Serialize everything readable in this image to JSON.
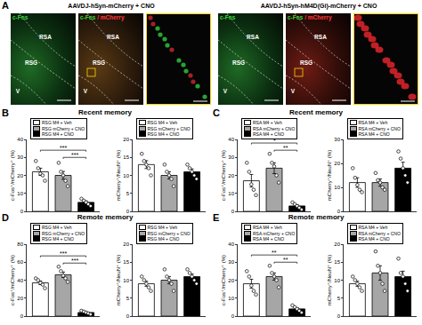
{
  "panel_a": {
    "label": "A",
    "groups": [
      {
        "title": "AAVDJ-hSyn-mCherry + CNO",
        "images": [
          {
            "channels": [
              "c-Fos"
            ],
            "regions": [
              "RSA",
              "RSG",
              "V"
            ]
          },
          {
            "channels": [
              "c-Fos",
              "/ mCherry"
            ],
            "regions": [
              "RSA",
              "RSG",
              "V"
            ]
          }
        ]
      },
      {
        "title": "AAVDJ-hSyn-hM4D(Gi)-mCherry + CNO",
        "images": [
          {
            "channels": [
              "c-Fos"
            ],
            "regions": [
              "RSA",
              "RSG",
              "V"
            ]
          },
          {
            "channels": [
              "c-Fos",
              "/ mCherry"
            ],
            "regions": [
              "RSA",
              "RSG",
              "V"
            ]
          }
        ]
      }
    ]
  },
  "chart_data": [
    {
      "type": "bar",
      "panel": "B",
      "title": "Recent memory",
      "ylabel": "c-Fos⁺/mCherry⁺ (%)",
      "categories": [
        "RSG M4 + Veh",
        "RSG mCherry + CNO",
        "RSG M4 + CNO"
      ],
      "colors": [
        "#ffffff",
        "#a6a6a6",
        "#000000"
      ],
      "values": [
        22,
        20,
        5
      ],
      "errors": [
        2,
        2.2,
        0.8
      ],
      "points": [
        [
          28,
          24,
          21,
          20,
          17
        ],
        [
          27,
          22,
          20,
          17,
          14
        ],
        [
          7,
          6,
          5,
          4,
          3
        ]
      ],
      "significance": [
        {
          "from": 1,
          "to": 2,
          "label": "***"
        },
        {
          "from": 0,
          "to": 2,
          "label": "***"
        }
      ],
      "ylim": [
        0,
        40
      ],
      "yticks": [
        0,
        10,
        20,
        30,
        40
      ],
      "grid": false,
      "tick_labels": "y"
    },
    {
      "type": "bar",
      "ylabel": "mCherry⁺/NeuN⁺ (%)",
      "categories": [
        "RSG M4 + Veh",
        "RSG mCherry + CNO",
        "RSG M4 + CNO"
      ],
      "colors": [
        "#ffffff",
        "#a6a6a6",
        "#000000"
      ],
      "values": [
        13,
        10,
        11
      ],
      "errors": [
        1.1,
        1,
        0.8
      ],
      "points": [
        [
          16,
          14,
          13,
          12,
          10
        ],
        [
          13,
          11,
          10,
          9,
          7
        ],
        [
          13,
          12,
          11,
          10,
          9
        ]
      ],
      "ylim": [
        0,
        20
      ],
      "yticks": [
        0,
        5,
        10,
        15,
        20
      ],
      "grid": false,
      "tick_labels": "y"
    },
    {
      "type": "bar",
      "panel": "C",
      "title": "Recent memory",
      "ylabel": "c-Fos⁺/mCherry⁺ (%)",
      "categories": [
        "RSA M4 + Veh",
        "RSA mCherry + CNO",
        "RSA M4 + CNO"
      ],
      "colors": [
        "#ffffff",
        "#a6a6a6",
        "#000000"
      ],
      "values": [
        17,
        24,
        3
      ],
      "errors": [
        3.5,
        3,
        0.7
      ],
      "points": [
        [
          27,
          22,
          15,
          12,
          9
        ],
        [
          32,
          27,
          25,
          20,
          16
        ],
        [
          5,
          4,
          3,
          2,
          1
        ]
      ],
      "significance": [
        {
          "from": 1,
          "to": 2,
          "label": "**"
        },
        {
          "from": 0,
          "to": 2,
          "label": "*"
        }
      ],
      "ylim": [
        0,
        40
      ],
      "yticks": [
        0,
        10,
        20,
        30,
        40
      ],
      "grid": false,
      "tick_labels": "y"
    },
    {
      "type": "bar",
      "ylabel": "mCherry⁺/NeuN⁺ (%)",
      "categories": [
        "RSA M4 + Veh",
        "RSA mCherry + CNO",
        "RSA M4 + CNO"
      ],
      "colors": [
        "#ffffff",
        "#a6a6a6",
        "#000000"
      ],
      "values": [
        12,
        12,
        18
      ],
      "errors": [
        2,
        1.5,
        2.5
      ],
      "points": [
        [
          18,
          14,
          11,
          9,
          8
        ],
        [
          16,
          13,
          12,
          10,
          9
        ],
        [
          25,
          22,
          18,
          15,
          12
        ]
      ],
      "ylim": [
        0,
        30
      ],
      "yticks": [
        0,
        10,
        20,
        30
      ],
      "grid": false,
      "tick_labels": "y"
    },
    {
      "type": "bar",
      "panel": "D",
      "title": "Remote memory",
      "ylabel": "c-Fos⁺/mCherry⁺ (%)",
      "categories": [
        "RSG M4 + Veh",
        "RSG mCherry + CNO",
        "RSG M4 + CNO"
      ],
      "colors": [
        "#ffffff",
        "#a6a6a6",
        "#000000"
      ],
      "values": [
        37,
        46,
        4
      ],
      "errors": [
        2,
        3,
        0.7
      ],
      "points": [
        [
          42,
          40,
          37,
          35,
          31
        ],
        [
          55,
          50,
          45,
          42,
          38
        ],
        [
          6,
          5,
          4,
          3,
          2
        ]
      ],
      "significance": [
        {
          "from": 1,
          "to": 2,
          "label": "***"
        },
        {
          "from": 0,
          "to": 2,
          "label": "***"
        }
      ],
      "ylim": [
        0,
        80
      ],
      "yticks": [
        0,
        20,
        40,
        60,
        80
      ],
      "grid": false,
      "tick_labels": "y"
    },
    {
      "type": "bar",
      "ylabel": "mCherry⁺/NeuN⁺ (%)",
      "categories": [
        "RSG M4 + Veh",
        "RSG mCherry + CNO",
        "RSG M4 + CNO"
      ],
      "colors": [
        "#ffffff",
        "#a6a6a6",
        "#000000"
      ],
      "values": [
        9,
        10,
        11
      ],
      "errors": [
        0.7,
        1,
        0.7
      ],
      "points": [
        [
          11,
          10,
          9,
          8,
          7
        ],
        [
          13,
          11,
          10,
          9,
          7
        ],
        [
          13,
          12,
          11,
          10,
          9
        ]
      ],
      "ylim": [
        0,
        20
      ],
      "yticks": [
        0,
        5,
        10,
        15,
        20
      ],
      "grid": false,
      "tick_labels": "y"
    },
    {
      "type": "bar",
      "panel": "E",
      "title": "Remote memory",
      "ylabel": "c-Fos⁺/mCherry⁺ (%)",
      "categories": [
        "RSA M4 + Veh",
        "RSA mCherry + CNO",
        "RSA M4 + CNO"
      ],
      "colors": [
        "#ffffff",
        "#a6a6a6",
        "#000000"
      ],
      "values": [
        18,
        22,
        4
      ],
      "errors": [
        2.5,
        2,
        0.7
      ],
      "points": [
        [
          25,
          22,
          17,
          14,
          12
        ],
        [
          28,
          24,
          22,
          20,
          16
        ],
        [
          6,
          5,
          4,
          3,
          2
        ]
      ],
      "significance": [
        {
          "from": 1,
          "to": 2,
          "label": "**"
        },
        {
          "from": 0,
          "to": 2,
          "label": "**"
        }
      ],
      "ylim": [
        0,
        40
      ],
      "yticks": [
        0,
        10,
        20,
        30,
        40
      ],
      "grid": false,
      "tick_labels": "y"
    },
    {
      "type": "bar",
      "ylabel": "mCherry⁺/NeuN⁺ (%)",
      "categories": [
        "RSA M4 + Veh",
        "RSA mCherry + CNO",
        "RSA M4 + CNO"
      ],
      "colors": [
        "#ffffff",
        "#a6a6a6",
        "#000000"
      ],
      "values": [
        9,
        12,
        11
      ],
      "errors": [
        0.7,
        2,
        1.5
      ],
      "points": [
        [
          11,
          10,
          9,
          8,
          7
        ],
        [
          18,
          14,
          12,
          9,
          7
        ],
        [
          16,
          12,
          11,
          9,
          7
        ]
      ],
      "ylim": [
        0,
        20
      ],
      "yticks": [
        0,
        5,
        10,
        15,
        20
      ],
      "grid": false,
      "tick_labels": "y"
    }
  ]
}
